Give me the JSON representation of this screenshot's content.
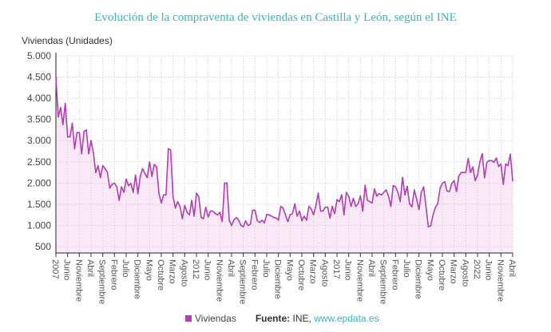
{
  "chart_data": {
    "type": "area",
    "title": "Evolución de la compraventa de viviendas en Castilla y León, según el INE",
    "ylabel": "Viviendas (Unidades)",
    "xlabel": "",
    "frequency": "monthly",
    "x_range": [
      "2007-01",
      "2023-04"
    ],
    "ylim": [
      350,
      5000
    ],
    "yticks": [
      500,
      1000,
      1500,
      2000,
      2500,
      3000,
      3500,
      4000,
      4500,
      5000
    ],
    "ytick_labels": [
      "500",
      "1.000",
      "1.500",
      "2.000",
      "2.500",
      "3.000",
      "3.500",
      "4.000",
      "4.500",
      "5.000"
    ],
    "xtick_labels": [
      "2007",
      "Junio",
      "Noviembre",
      "Abril",
      "Septiembre",
      "Febrero",
      "Julio",
      "Diciembre",
      "Mayo",
      "Octubre",
      "Marzo",
      "Agosto",
      "2012",
      "Junio",
      "Noviembre",
      "Abril",
      "Septiembre",
      "Febrero",
      "Julio",
      "Diciembre",
      "Mayo",
      "Octubre",
      "Marzo",
      "Agosto",
      "2017",
      "Junio",
      "Noviembre",
      "Abril",
      "Septiembre",
      "Febrero",
      "Julio",
      "Diciembre",
      "Mayo",
      "Octubre",
      "Marzo",
      "Agosto",
      "2022",
      "Junio",
      "Noviembre",
      "Abril"
    ],
    "xtick_every_months": 5,
    "grid": true,
    "legend_position": "bottom",
    "series": [
      {
        "name": "Viviendas",
        "color": "#b23db4",
        "fill": "#fbe8f7",
        "values": [
          4500,
          3560,
          3780,
          3380,
          3880,
          3090,
          3090,
          3410,
          2810,
          3190,
          3190,
          2690,
          3220,
          3250,
          2690,
          3000,
          2720,
          2250,
          2410,
          2130,
          2410,
          2340,
          2250,
          1880,
          1970,
          2000,
          1910,
          1590,
          1910,
          1780,
          2090,
          1940,
          1990,
          1780,
          2190,
          1750,
          2160,
          2340,
          2220,
          2130,
          2500,
          2160,
          2440,
          2380,
          1750,
          1530,
          1720,
          1720,
          2810,
          2780,
          1690,
          1410,
          1560,
          1440,
          1160,
          1470,
          1310,
          1250,
          1590,
          1220,
          1760,
          1680,
          1190,
          1160,
          1430,
          1200,
          1340,
          1340,
          1280,
          1250,
          1310,
          1090,
          2000,
          2000,
          1125,
          1000,
          1125,
          1190,
          1125,
          1000,
          970,
          1110,
          1000,
          1030,
          1360,
          1360,
          1110,
          1070,
          1125,
          1060,
          1260,
          1250,
          1220,
          1190,
          1175,
          1125,
          1450,
          1410,
          1250,
          1090,
          1250,
          1280,
          1510,
          1220,
          1340,
          1110,
          1220,
          1125,
          1450,
          1390,
          1250,
          1470,
          1760,
          1340,
          1340,
          1430,
          1430,
          1175,
          1450,
          1280,
          1610,
          1560,
          1720,
          1250,
          1780,
          1690,
          1450,
          1640,
          1450,
          1510,
          1700,
          1340,
          1950,
          1590,
          1560,
          1530,
          1860,
          1690,
          1750,
          1720,
          1780,
          1840,
          1690,
          1450,
          1940,
          1910,
          1780,
          1560,
          2130,
          1720,
          1920,
          1510,
          1440,
          1840,
          1625,
          1375,
          1780,
          1910,
          1440,
          970,
          990,
          1250,
          1425,
          1510,
          1875,
          2000,
          2030,
          1810,
          1800,
          1990,
          2060,
          1800,
          2160,
          2250,
          2250,
          2250,
          2580,
          2250,
          2380,
          2060,
          2190,
          2500,
          2690,
          2125,
          2490,
          2530,
          2530,
          2490,
          2590,
          2390,
          2450,
          1970,
          2450,
          2410,
          2680,
          2050
        ]
      }
    ]
  },
  "legend": {
    "label": "Viviendas"
  },
  "source": {
    "label": "Fuente:",
    "text": "INE,",
    "link": "www.epdata.es"
  }
}
